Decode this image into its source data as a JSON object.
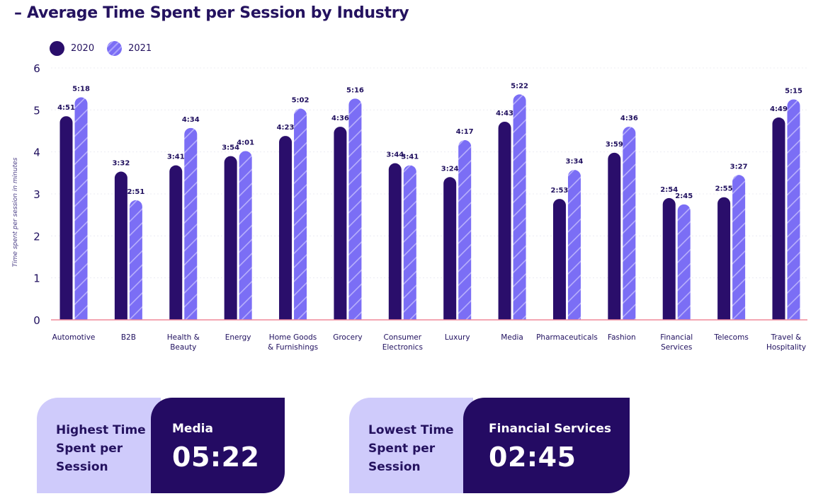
{
  "title": "– Average Time Spent per Session by Industry",
  "legend": {
    "series_a": "2020",
    "series_b": "2021"
  },
  "colors": {
    "series_a": "#2a0e6b",
    "series_b": "#7b6ef5",
    "axis_line": "#f08a9a"
  },
  "chart_data": {
    "type": "bar",
    "ylabel": "Time spent per session in minutes",
    "ylim": [
      0,
      6
    ],
    "yticks": [
      "0",
      "1",
      "2",
      "3",
      "4",
      "5",
      "6"
    ],
    "categories": [
      [
        "Automotive"
      ],
      [
        "B2B"
      ],
      [
        "Health &",
        "Beauty"
      ],
      [
        "Energy"
      ],
      [
        "Home Goods",
        "& Furnishings"
      ],
      [
        "Grocery"
      ],
      [
        "Consumer",
        "Electronics"
      ],
      [
        "Luxury"
      ],
      [
        "Media"
      ],
      [
        "Pharmaceuticals"
      ],
      [
        "Fashion"
      ],
      [
        "Financial",
        "Services"
      ],
      [
        "Telecoms"
      ],
      [
        "Travel &",
        "Hospitality"
      ]
    ],
    "series": [
      {
        "name": "2020",
        "values": [
          4.85,
          3.53,
          3.68,
          3.9,
          4.38,
          4.6,
          3.73,
          3.4,
          4.72,
          2.88,
          3.98,
          2.9,
          2.92,
          4.82
        ],
        "labels": [
          "4:51",
          "3:32",
          "3:41",
          "3:54",
          "4:23",
          "4:36",
          "3:44",
          "3:24",
          "4:43",
          "2:53",
          "3:59",
          "2:54",
          "2:55",
          "4:49"
        ]
      },
      {
        "name": "2021",
        "values": [
          5.3,
          2.85,
          4.57,
          4.02,
          5.03,
          5.27,
          3.68,
          4.28,
          5.37,
          3.57,
          4.6,
          2.75,
          3.45,
          5.25
        ],
        "labels": [
          "5:18",
          "2:51",
          "4:34",
          "4:01",
          "5:02",
          "5:16",
          "3:41",
          "4:17",
          "5:22",
          "3:34",
          "4:36",
          "2:45",
          "3:27",
          "5:15"
        ]
      }
    ]
  },
  "highlights": {
    "highest": {
      "label": "Highest Time\nSpent per\nSession",
      "name": "Media",
      "time": "05:22"
    },
    "lowest": {
      "label": "Lowest Time\nSpent per\nSession",
      "name": "Financial Services",
      "time": "02:45"
    }
  }
}
